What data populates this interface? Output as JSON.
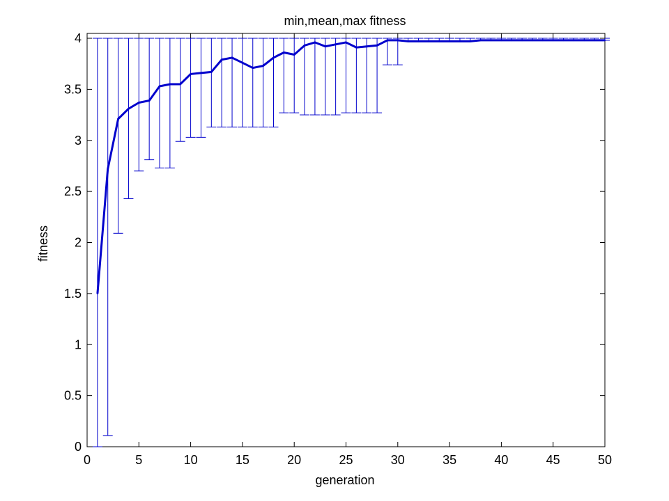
{
  "chart_data": {
    "type": "line",
    "title": "min,mean,max fitness",
    "xlabel": "generation",
    "ylabel": "fitness",
    "xlim": [
      0,
      50
    ],
    "ylim": [
      0,
      4
    ],
    "xticks": [
      0,
      5,
      10,
      15,
      20,
      25,
      30,
      35,
      40,
      45,
      50
    ],
    "yticks": [
      0,
      0.5,
      1,
      1.5,
      2,
      2.5,
      3,
      3.5,
      4
    ],
    "grid": false,
    "legend": "none",
    "color": "#0000cc",
    "x": [
      1,
      2,
      3,
      4,
      5,
      6,
      7,
      8,
      9,
      10,
      11,
      12,
      13,
      14,
      15,
      16,
      17,
      18,
      19,
      20,
      21,
      22,
      23,
      24,
      25,
      26,
      27,
      28,
      29,
      30,
      31,
      32,
      33,
      34,
      35,
      36,
      37,
      38,
      39,
      40,
      41,
      42,
      43,
      44,
      45,
      46,
      47,
      48,
      49,
      50
    ],
    "series": [
      {
        "name": "",
        "role": "mean",
        "values": [
          1.5,
          2.72,
          3.21,
          3.31,
          3.37,
          3.39,
          3.53,
          3.55,
          3.55,
          3.65,
          3.66,
          3.67,
          3.79,
          3.81,
          3.76,
          3.71,
          3.73,
          3.81,
          3.86,
          3.84,
          3.93,
          3.96,
          3.92,
          3.94,
          3.96,
          3.91,
          3.92,
          3.93,
          3.98,
          3.98,
          3.97,
          3.97,
          3.97,
          3.97,
          3.97,
          3.97,
          3.97,
          3.98,
          3.98,
          3.98,
          3.98,
          3.98,
          3.98,
          3.98,
          3.98,
          3.98,
          3.98,
          3.98,
          3.98,
          3.98
        ]
      },
      {
        "name": "",
        "role": "min",
        "values": [
          0.0,
          0.11,
          2.09,
          2.43,
          2.7,
          2.81,
          2.73,
          2.73,
          2.99,
          3.03,
          3.03,
          3.13,
          3.13,
          3.13,
          3.13,
          3.13,
          3.13,
          3.13,
          3.27,
          3.27,
          3.25,
          3.25,
          3.25,
          3.25,
          3.27,
          3.27,
          3.27,
          3.27,
          3.74,
          3.74,
          3.97,
          3.97,
          3.97,
          3.97,
          3.97,
          3.97,
          3.97,
          3.98,
          3.98,
          3.98,
          3.98,
          3.98,
          3.98,
          3.98,
          3.98,
          3.98,
          3.98,
          3.98,
          3.98,
          3.98
        ]
      },
      {
        "name": "",
        "role": "max",
        "values": [
          4,
          4,
          4,
          4,
          4,
          4,
          4,
          4,
          4,
          4,
          4,
          4,
          4,
          4,
          4,
          4,
          4,
          4,
          4,
          4,
          4,
          4,
          4,
          4,
          4,
          4,
          4,
          4,
          4,
          4,
          4,
          4,
          4,
          4,
          4,
          4,
          4,
          4,
          4,
          4,
          4,
          4,
          4,
          4,
          4,
          4,
          4,
          4,
          4,
          4
        ]
      }
    ]
  }
}
